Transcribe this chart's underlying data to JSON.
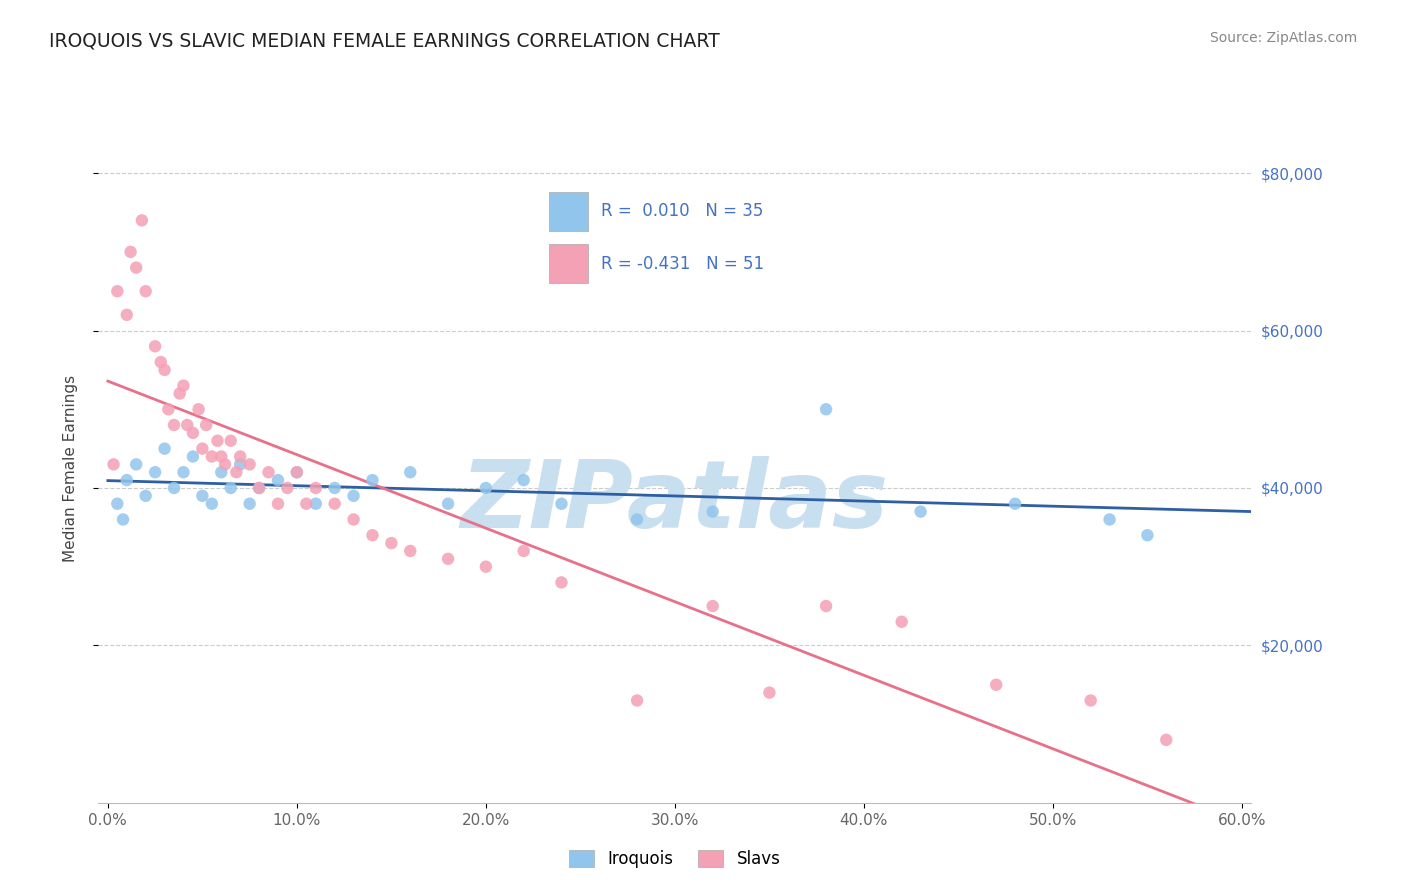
{
  "title": "IROQUOIS VS SLAVIC MEDIAN FEMALE EARNINGS CORRELATION CHART",
  "source": "Source: ZipAtlas.com",
  "ylabel": "Median Female Earnings",
  "xlim": [
    -0.005,
    0.605
  ],
  "ylim": [
    0,
    85000
  ],
  "xticks": [
    0.0,
    0.1,
    0.2,
    0.3,
    0.4,
    0.5,
    0.6
  ],
  "xticklabels": [
    "0.0%",
    "10.0%",
    "20.0%",
    "30.0%",
    "40.0%",
    "50.0%",
    "60.0%"
  ],
  "yticks": [
    20000,
    40000,
    60000,
    80000
  ],
  "yticklabels": [
    "$20,000",
    "$40,000",
    "$60,000",
    "$80,000"
  ],
  "background_color": "#ffffff",
  "plot_bg_color": "#ffffff",
  "grid_color": "#cccccc",
  "iroquois_color": "#92C5EC",
  "slavs_color": "#F4A0B5",
  "iroquois_line_color": "#2E5FA3",
  "slavs_line_color": "#E8708A",
  "iroquois_R": 0.01,
  "iroquois_N": 35,
  "slavs_R": -0.431,
  "slavs_N": 51,
  "watermark": "ZIPatlas",
  "watermark_color": "#c8dff0",
  "iroquois_x": [
    0.005,
    0.008,
    0.01,
    0.015,
    0.02,
    0.025,
    0.03,
    0.035,
    0.04,
    0.045,
    0.05,
    0.055,
    0.06,
    0.065,
    0.07,
    0.075,
    0.08,
    0.09,
    0.1,
    0.11,
    0.12,
    0.13,
    0.14,
    0.16,
    0.18,
    0.2,
    0.22,
    0.24,
    0.28,
    0.32,
    0.38,
    0.43,
    0.48,
    0.53,
    0.55
  ],
  "iroquois_y": [
    38000,
    36000,
    41000,
    43000,
    39000,
    42000,
    45000,
    40000,
    42000,
    44000,
    39000,
    38000,
    42000,
    40000,
    43000,
    38000,
    40000,
    41000,
    42000,
    38000,
    40000,
    39000,
    41000,
    42000,
    38000,
    40000,
    41000,
    38000,
    36000,
    37000,
    50000,
    37000,
    38000,
    36000,
    34000
  ],
  "slavs_x": [
    0.003,
    0.005,
    0.01,
    0.012,
    0.015,
    0.018,
    0.02,
    0.025,
    0.028,
    0.03,
    0.032,
    0.035,
    0.038,
    0.04,
    0.042,
    0.045,
    0.048,
    0.05,
    0.052,
    0.055,
    0.058,
    0.06,
    0.062,
    0.065,
    0.068,
    0.07,
    0.075,
    0.08,
    0.085,
    0.09,
    0.095,
    0.1,
    0.105,
    0.11,
    0.12,
    0.13,
    0.14,
    0.15,
    0.16,
    0.18,
    0.2,
    0.22,
    0.24,
    0.28,
    0.32,
    0.35,
    0.38,
    0.42,
    0.47,
    0.52,
    0.56
  ],
  "slavs_y": [
    43000,
    65000,
    62000,
    70000,
    68000,
    74000,
    65000,
    58000,
    56000,
    55000,
    50000,
    48000,
    52000,
    53000,
    48000,
    47000,
    50000,
    45000,
    48000,
    44000,
    46000,
    44000,
    43000,
    46000,
    42000,
    44000,
    43000,
    40000,
    42000,
    38000,
    40000,
    42000,
    38000,
    40000,
    38000,
    36000,
    34000,
    33000,
    32000,
    31000,
    30000,
    32000,
    28000,
    13000,
    25000,
    14000,
    25000,
    23000,
    15000,
    13000,
    8000
  ]
}
